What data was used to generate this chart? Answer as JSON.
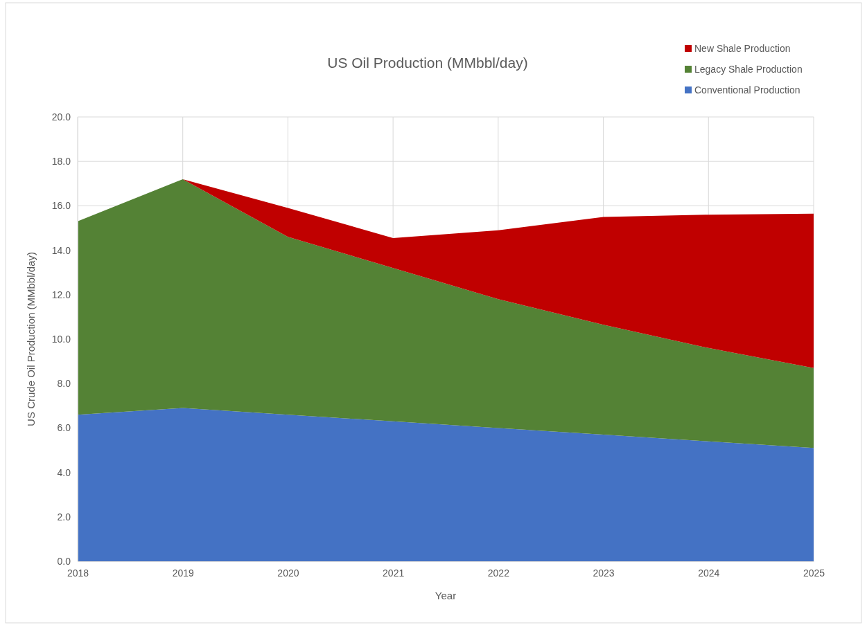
{
  "chart_data": {
    "type": "area",
    "stacked": true,
    "title": "US Oil Production (MMbbl/day)",
    "xlabel": "Year",
    "ylabel": "US Crude Oil Production (MMbbl/day)",
    "categories": [
      "2018",
      "2019",
      "2020",
      "2021",
      "2022",
      "2023",
      "2024",
      "2025"
    ],
    "series": [
      {
        "name": "Conventional Production",
        "color": "#4472c4",
        "values": [
          6.6,
          6.9,
          6.6,
          6.3,
          6.0,
          5.7,
          5.4,
          5.1
        ]
      },
      {
        "name": "Legacy Shale Production",
        "color": "#548235",
        "values": [
          8.7,
          10.3,
          8.0,
          6.9,
          5.8,
          4.95,
          4.2,
          3.6
        ]
      },
      {
        "name": "New Shale Production",
        "color": "#c00000",
        "values": [
          0,
          0,
          1.3,
          1.35,
          3.1,
          4.85,
          6.0,
          6.95
        ]
      }
    ],
    "ylim": [
      0,
      20
    ],
    "yticks": [
      {
        "value": 0,
        "label": "0.0"
      },
      {
        "value": 2,
        "label": "2.0"
      },
      {
        "value": 4,
        "label": "4.0"
      },
      {
        "value": 6,
        "label": "6.0"
      },
      {
        "value": 8,
        "label": "8.0"
      },
      {
        "value": 10,
        "label": "10.0"
      },
      {
        "value": 12,
        "label": "12.0"
      },
      {
        "value": 14,
        "label": "14.0"
      },
      {
        "value": 16,
        "label": "16.0"
      },
      {
        "value": 18,
        "label": "18.0"
      },
      {
        "value": 20,
        "label": "20.0"
      }
    ],
    "grid": true,
    "legend": "top right"
  }
}
